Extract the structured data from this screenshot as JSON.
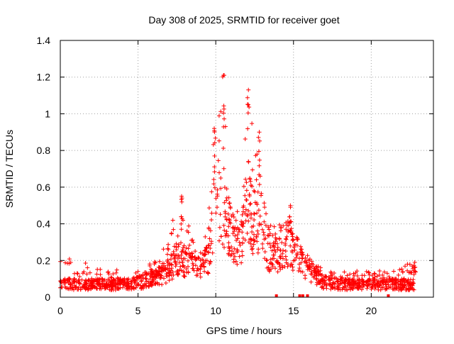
{
  "chart_data": {
    "type": "scatter",
    "title": "Day 308 of 2025, SRMTID for receiver goet",
    "xlabel": "GPS time / hours",
    "ylabel": "SRMTID / TECUs",
    "xlim": [
      0,
      24
    ],
    "ylim": [
      0,
      1.4
    ],
    "xticks": [
      0,
      5,
      10,
      15,
      20
    ],
    "xtick_labels": [
      "0",
      "5",
      "10",
      "15",
      "20"
    ],
    "yticks": [
      0,
      0.2,
      0.4,
      0.6,
      0.8,
      1,
      1.2,
      1.4
    ],
    "ytick_labels": [
      "0",
      "0.2",
      "0.4",
      "0.6",
      "0.8",
      "1",
      "1.2",
      "1.4"
    ],
    "grid": true,
    "marker": "+",
    "series": [
      {
        "name": "SRMTID",
        "color": "#ff0000",
        "x_range": [
          0,
          22.8
        ],
        "envelope_hours": [
          0,
          2,
          4,
          5,
          6,
          7,
          7.5,
          8,
          9,
          9.5,
          10,
          10.5,
          11,
          11.5,
          12,
          12.5,
          13,
          13.5,
          14,
          14.5,
          15,
          15.5,
          16,
          17,
          18,
          20,
          22.8
        ],
        "typical_level": [
          0.07,
          0.07,
          0.07,
          0.08,
          0.1,
          0.14,
          0.22,
          0.2,
          0.15,
          0.2,
          0.45,
          0.45,
          0.35,
          0.25,
          0.5,
          0.4,
          0.3,
          0.25,
          0.25,
          0.3,
          0.25,
          0.2,
          0.15,
          0.08,
          0.07,
          0.07,
          0.07
        ],
        "peak_level": [
          0.24,
          0.18,
          0.15,
          0.16,
          0.2,
          0.3,
          0.55,
          0.45,
          0.25,
          0.5,
          0.92,
          1.21,
          0.55,
          0.45,
          1.13,
          0.9,
          0.55,
          0.4,
          0.45,
          0.5,
          0.35,
          0.25,
          0.2,
          0.15,
          0.15,
          0.14,
          0.19
        ],
        "notable_peaks": [
          {
            "x": 7.8,
            "y": 0.55
          },
          {
            "x": 9.9,
            "y": 0.92
          },
          {
            "x": 10.5,
            "y": 1.21
          },
          {
            "x": 12.1,
            "y": 1.13
          },
          {
            "x": 12.8,
            "y": 0.9
          },
          {
            "x": 14.8,
            "y": 0.5
          },
          {
            "x": 22.8,
            "y": 0.19
          }
        ],
        "zero_markers_x": [
          13.9,
          15.4,
          15.6,
          15.9,
          21.1
        ]
      }
    ]
  }
}
